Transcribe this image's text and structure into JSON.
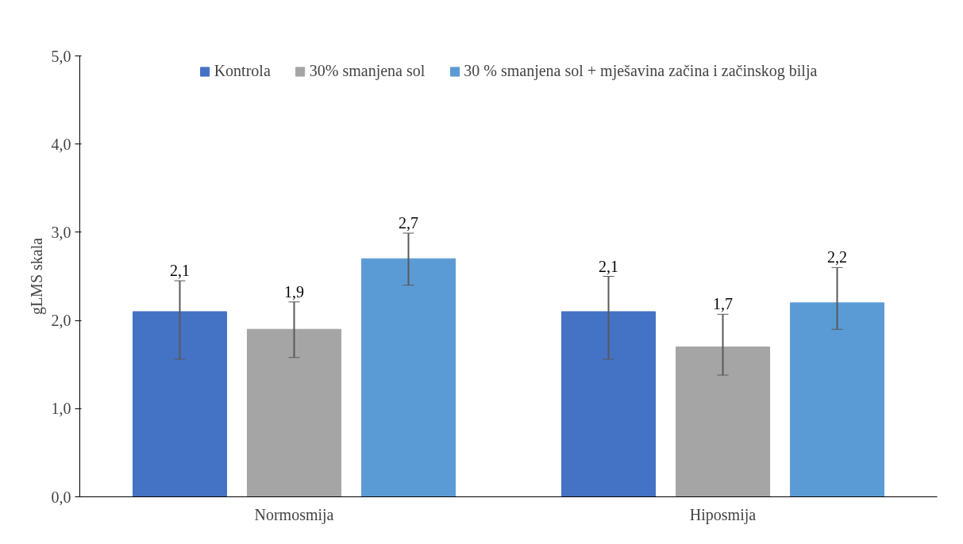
{
  "chart_data": {
    "type": "bar",
    "ylabel": "gLMS skala",
    "categories": [
      "Normosmija",
      "Hiposmija"
    ],
    "series": [
      {
        "name": "Kontrola",
        "color": "#4472c4",
        "values": [
          2.1,
          2.1
        ],
        "value_labels": [
          "2,1",
          "2,1"
        ],
        "errors": [
          [
            1.56,
            2.45
          ],
          [
            1.56,
            2.5
          ]
        ]
      },
      {
        "name": "30% smanjena sol",
        "color": "#a5a5a5",
        "values": [
          1.9,
          1.7
        ],
        "value_labels": [
          "1,9",
          "1,7"
        ],
        "errors": [
          [
            1.58,
            2.21
          ],
          [
            1.38,
            2.07
          ]
        ]
      },
      {
        "name": "30 % smanjena sol + mješavina začina i začinskog bilja",
        "color": "#5b9bd5",
        "values": [
          2.7,
          2.2
        ],
        "value_labels": [
          "2,7",
          "2,2"
        ],
        "errors": [
          [
            2.4,
            2.99
          ],
          [
            1.9,
            2.6
          ]
        ]
      }
    ],
    "ylim": [
      0,
      5
    ],
    "yticks": [
      {
        "value": 0,
        "label": "0,0"
      },
      {
        "value": 1,
        "label": "1,0"
      },
      {
        "value": 2,
        "label": "2,0"
      },
      {
        "value": 3,
        "label": "3,0"
      },
      {
        "value": 4,
        "label": "4,0"
      },
      {
        "value": 5,
        "label": "5,0"
      }
    ],
    "legend": "top",
    "grid": false
  }
}
